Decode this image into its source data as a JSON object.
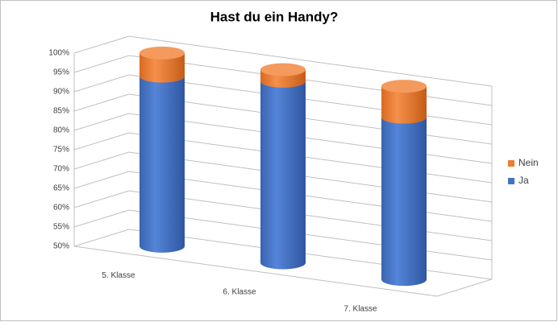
{
  "chart_data": {
    "type": "bar3d_cylinder_stacked",
    "title": "Hast du ein Handy?",
    "categories": [
      "5. Klasse",
      "6. Klasse",
      "7. Klasse"
    ],
    "series": [
      {
        "name": "Ja",
        "color": "#4472c4",
        "values": [
          94,
          97,
          92
        ]
      },
      {
        "name": "Nein",
        "color": "#ed7d31",
        "values": [
          6,
          3,
          8
        ]
      }
    ],
    "ylim": [
      50,
      100
    ],
    "yticks": [
      {
        "value": 50,
        "label": "50%"
      },
      {
        "value": 55,
        "label": "55%"
      },
      {
        "value": 60,
        "label": "60%"
      },
      {
        "value": 65,
        "label": "65%"
      },
      {
        "value": 70,
        "label": "70%"
      },
      {
        "value": 75,
        "label": "75%"
      },
      {
        "value": 80,
        "label": "80%"
      },
      {
        "value": 85,
        "label": "85%"
      },
      {
        "value": 90,
        "label": "90%"
      },
      {
        "value": 95,
        "label": "95%"
      },
      {
        "value": 100,
        "label": "100%"
      }
    ],
    "grid": true,
    "legend": "right"
  }
}
